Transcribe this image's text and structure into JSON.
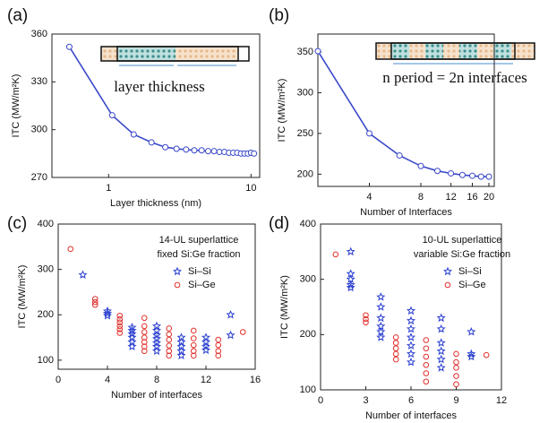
{
  "chart_data": [
    {
      "type": "line",
      "panel_label": "(a)",
      "xlabel": "Layer thickness (nm)",
      "ylabel": "ITC (MW/m²K)",
      "annotations": [
        "layer thickness"
      ],
      "xscale": "log",
      "xlim": [
        0.4,
        11.5
      ],
      "ylim": [
        270,
        360
      ],
      "xticks": [
        1,
        10
      ],
      "yticks": [
        270,
        300,
        330,
        360
      ],
      "color": "#3a49c9",
      "x": [
        0.53,
        1.06,
        1.5,
        2,
        2.5,
        3,
        3.5,
        4,
        4.5,
        5,
        5.5,
        6,
        6.5,
        7,
        7.5,
        8,
        8.5,
        9,
        9.5,
        10,
        10.5
      ],
      "values": [
        352,
        309,
        297,
        292,
        289,
        288,
        287.5,
        287,
        287,
        286.5,
        286.5,
        286,
        286,
        285.5,
        285.5,
        285.5,
        285,
        285,
        285,
        285.5,
        285
      ]
    },
    {
      "type": "line",
      "panel_label": "(b)",
      "xlabel": "Number of Interfaces",
      "ylabel": "ITC (MW/m²K)",
      "annotations": [
        "n period = 2n interfaces"
      ],
      "xscale": "log",
      "xlim": [
        2,
        21.5
      ],
      "ylim": [
        185,
        372
      ],
      "xticks": [
        4,
        8,
        12,
        16,
        20
      ],
      "yticks": [
        200,
        250,
        300,
        350
      ],
      "color": "#3a49c9",
      "x": [
        2,
        4,
        6,
        8,
        10,
        12,
        14,
        16,
        18,
        20
      ],
      "values": [
        351,
        250,
        223,
        210,
        204,
        201,
        199,
        198,
        197,
        197
      ]
    },
    {
      "type": "scatter",
      "panel_label": "(c)",
      "xlabel": "Number of interfaces",
      "ylabel": "ITC (MW/m²K)",
      "annotations": [
        "14-UL superlattice",
        "fixed Si:Ge fraction"
      ],
      "xlim": [
        0,
        16
      ],
      "ylim": [
        80,
        400
      ],
      "xticks": [
        0,
        4,
        8,
        12,
        16
      ],
      "yticks": [
        100,
        200,
        300,
        400
      ],
      "legend": "upper right",
      "series": [
        {
          "name": "Si–Si",
          "color": "#2a3fd0",
          "marker": "star",
          "x": [
            2,
            4,
            4,
            4,
            6,
            6,
            6,
            6,
            6,
            6,
            8,
            8,
            8,
            8,
            8,
            8,
            8,
            10,
            10,
            10,
            10,
            10,
            12,
            12,
            12,
            12,
            14,
            14
          ],
          "values": [
            288,
            198,
            203,
            208,
            130,
            140,
            150,
            158,
            165,
            172,
            120,
            130,
            138,
            147,
            155,
            165,
            175,
            110,
            120,
            130,
            140,
            150,
            122,
            130,
            140,
            150,
            155,
            200
          ]
        },
        {
          "name": "Si–Ge",
          "color": "#e0302b",
          "marker": "circle",
          "x": [
            1,
            3,
            3,
            3,
            5,
            5,
            5,
            5,
            5,
            5,
            7,
            7,
            7,
            7,
            7,
            7,
            7,
            9,
            9,
            9,
            9,
            9,
            9,
            11,
            11,
            11,
            11,
            11,
            13,
            13,
            13,
            13,
            15
          ],
          "values": [
            345,
            222,
            228,
            235,
            160,
            168,
            175,
            183,
            190,
            198,
            120,
            130,
            140,
            150,
            162,
            175,
            193,
            110,
            120,
            132,
            145,
            157,
            170,
            110,
            120,
            133,
            148,
            165,
            110,
            120,
            133,
            145,
            162
          ]
        }
      ]
    },
    {
      "type": "scatter",
      "panel_label": "(d)",
      "xlabel": "Number of interfaces",
      "ylabel": "ITC (MW/m²K)",
      "annotations": [
        "10-UL superlattice",
        "variable Si:Ge fraction"
      ],
      "xlim": [
        0,
        12
      ],
      "ylim": [
        100,
        400
      ],
      "xticks": [
        0,
        3,
        6,
        9,
        12
      ],
      "yticks": [
        100,
        200,
        300,
        400
      ],
      "legend": "upper right",
      "series": [
        {
          "name": "Si–Si",
          "color": "#2a3fd0",
          "marker": "star",
          "x": [
            2,
            2,
            2,
            2,
            2,
            4,
            4,
            4,
            4,
            4,
            4,
            6,
            6,
            6,
            6,
            6,
            6,
            6,
            8,
            8,
            8,
            8,
            8,
            8,
            10,
            10,
            10
          ],
          "values": [
            285,
            290,
            300,
            310,
            350,
            195,
            205,
            215,
            230,
            250,
            268,
            150,
            165,
            180,
            195,
            210,
            225,
            243,
            140,
            155,
            170,
            185,
            210,
            230,
            160,
            165,
            205
          ]
        },
        {
          "name": "Si–Ge",
          "color": "#e0302b",
          "marker": "circle",
          "x": [
            1,
            3,
            3,
            3,
            5,
            5,
            5,
            5,
            5,
            7,
            7,
            7,
            7,
            7,
            7,
            9,
            9,
            9,
            9,
            9,
            11
          ],
          "values": [
            345,
            222,
            228,
            235,
            155,
            165,
            175,
            185,
            195,
            115,
            130,
            145,
            160,
            175,
            190,
            110,
            125,
            140,
            150,
            165,
            163
          ]
        }
      ]
    }
  ]
}
